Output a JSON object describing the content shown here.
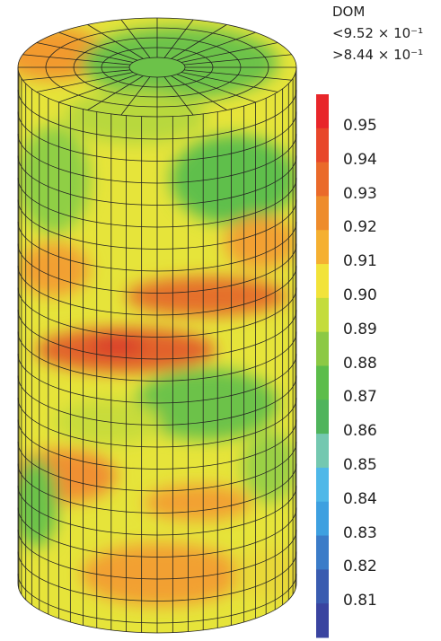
{
  "legend": {
    "title": "DOM",
    "max": "<9.52 × 10⁻¹",
    "min": ">8.44 × 10⁻¹",
    "labels": [
      "0.95",
      "0.94",
      "0.93",
      "0.92",
      "0.91",
      "0.90",
      "0.89",
      "0.88",
      "0.87",
      "0.86",
      "0.85",
      "0.84",
      "0.83",
      "0.82",
      "0.81"
    ]
  }
}
